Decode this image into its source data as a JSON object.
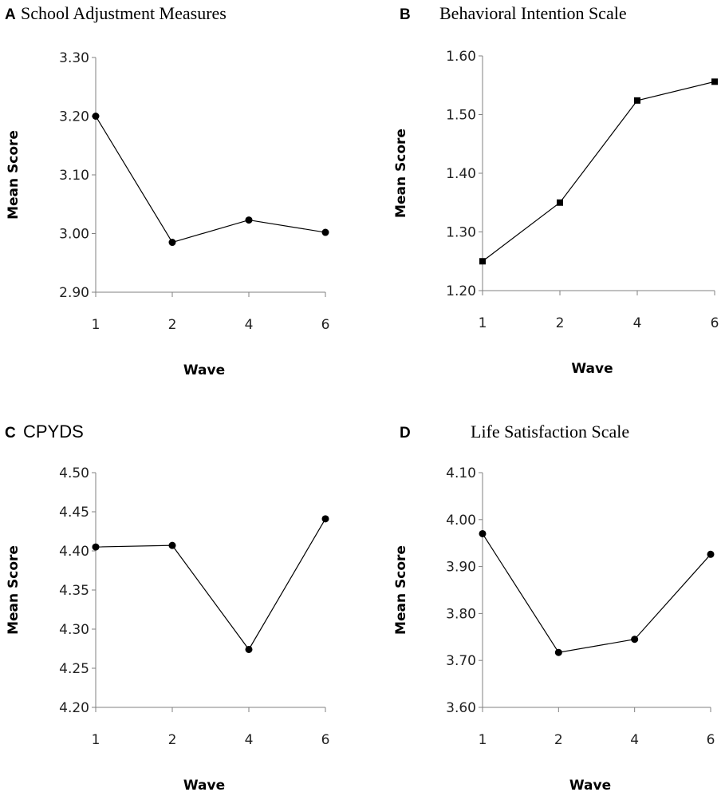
{
  "chart_data": [
    {
      "panel": "A",
      "type": "line",
      "title": "School Adjustment Measures",
      "xlabel": "Wave",
      "ylabel": "Mean Score",
      "categories": [
        "1",
        "2",
        "4",
        "6"
      ],
      "values": [
        3.2,
        2.985,
        3.023,
        3.002
      ],
      "ylim": [
        2.9,
        3.3
      ],
      "yticks": [
        "2.90",
        "3.00",
        "3.10",
        "3.20",
        "3.30"
      ],
      "marker": "circle"
    },
    {
      "panel": "B",
      "type": "line",
      "title": "Behavioral Intention Scale",
      "xlabel": "Wave",
      "ylabel": "Mean Score",
      "categories": [
        "1",
        "2",
        "4",
        "6"
      ],
      "values": [
        1.25,
        1.35,
        1.524,
        1.556
      ],
      "ylim": [
        1.2,
        1.6
      ],
      "yticks": [
        "1.20",
        "1.30",
        "1.40",
        "1.50",
        "1.60"
      ],
      "marker": "square"
    },
    {
      "panel": "C",
      "type": "line",
      "title": "CPYDS",
      "xlabel": "Wave",
      "ylabel": "Mean Score",
      "categories": [
        "1",
        "2",
        "4",
        "6"
      ],
      "values": [
        4.405,
        4.407,
        4.274,
        4.441
      ],
      "ylim": [
        4.2,
        4.5
      ],
      "yticks": [
        "4.20",
        "4.25",
        "4.30",
        "4.35",
        "4.40",
        "4.45",
        "4.50"
      ],
      "marker": "circle"
    },
    {
      "panel": "D",
      "type": "line",
      "title": "Life Satisfaction Scale",
      "xlabel": "Wave",
      "ylabel": "Mean Score",
      "categories": [
        "1",
        "2",
        "4",
        "6"
      ],
      "values": [
        3.97,
        3.717,
        3.745,
        3.926
      ],
      "ylim": [
        3.6,
        4.1
      ],
      "yticks": [
        "3.60",
        "3.70",
        "3.80",
        "3.90",
        "4.00",
        "4.10"
      ],
      "marker": "circle"
    }
  ]
}
